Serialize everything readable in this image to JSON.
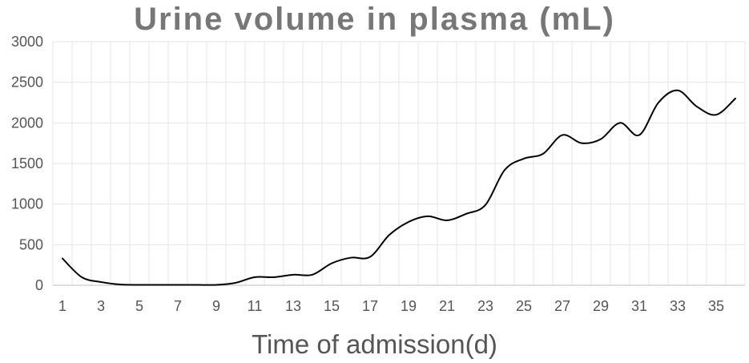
{
  "chart_data": {
    "type": "line",
    "title": "Urine volume in plasma (mL)",
    "xlabel": "Time of admission(d)",
    "ylabel": "",
    "xlim": [
      1,
      36
    ],
    "ylim": [
      0,
      3000
    ],
    "yticks": [
      "0",
      "500",
      "1000",
      "1500",
      "2000",
      "2500",
      "3000"
    ],
    "xticks": [
      "1",
      "3",
      "5",
      "7",
      "9",
      "11",
      "13",
      "15",
      "17",
      "19",
      "21",
      "23",
      "25",
      "27",
      "29",
      "31",
      "33",
      "35"
    ],
    "grid": true,
    "legend": "none",
    "line_color": "#000000",
    "grid_color": "#e6e6e6",
    "series": [
      {
        "x": [
          1,
          2,
          3,
          4,
          5,
          6,
          7,
          8,
          9,
          10,
          11,
          12,
          13,
          14,
          15,
          16,
          17,
          18,
          19,
          20,
          21,
          22,
          23,
          24,
          25,
          26,
          27,
          28,
          29,
          30,
          31,
          32,
          33,
          34,
          35,
          36
        ],
        "values": [
          330,
          100,
          40,
          10,
          5,
          5,
          5,
          5,
          5,
          30,
          100,
          100,
          130,
          130,
          270,
          340,
          350,
          620,
          780,
          850,
          800,
          880,
          990,
          1420,
          1560,
          1620,
          1850,
          1750,
          1800,
          2000,
          1850,
          2250,
          2400,
          2200,
          2100,
          2300
        ]
      }
    ]
  }
}
